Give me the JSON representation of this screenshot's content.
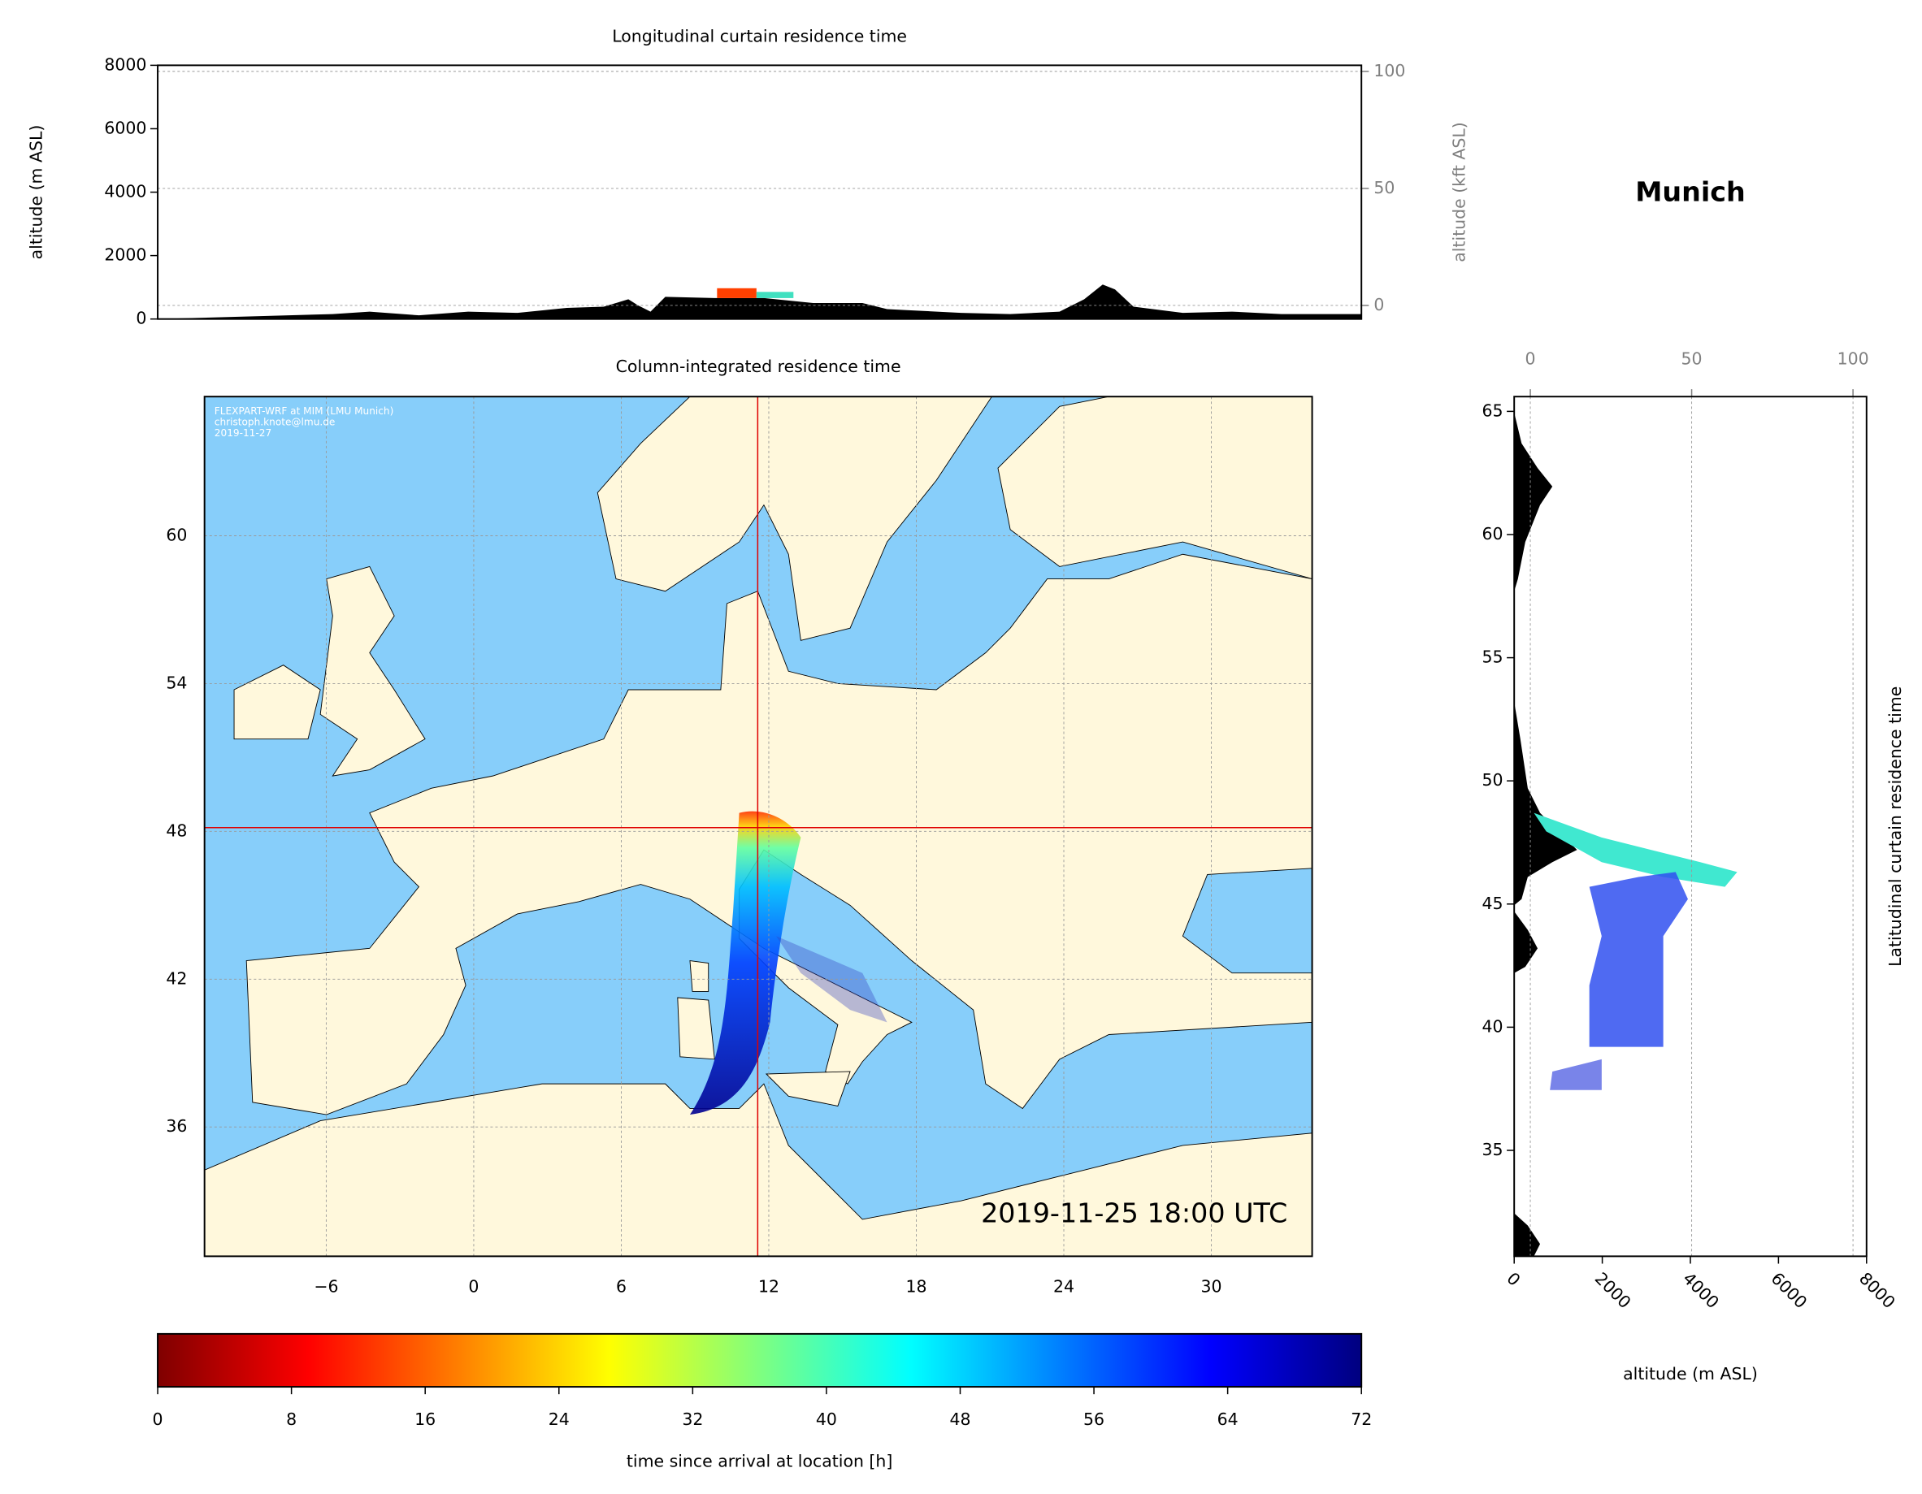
{
  "title": "Munich",
  "chart_data": [
    {
      "type": "area",
      "title": "Longitudinal curtain residence time",
      "y_label": "altitude (m ASL)",
      "y2_label": "altitude (kft ASL)",
      "ylim": [
        0,
        8000
      ],
      "yticks": [
        0,
        2000,
        4000,
        6000,
        8000
      ],
      "y2lim": [
        -5.8,
        102.6
      ],
      "y2ticks": [
        0,
        50,
        100
      ],
      "grid": true
    },
    {
      "type": "map",
      "title": "Column-integrated residence time",
      "annotation": [
        "FLEXPART-WRF at MIM (LMU Munich)",
        "christoph.knote@lmu.de",
        "2019-11-27"
      ],
      "timestamp": "2019-11-25 18:00 UTC",
      "xlim": [
        -10.95,
        34.1
      ],
      "xticks": [
        {
          "value": -6,
          "label": "−6"
        },
        0,
        6,
        12,
        18,
        24,
        30
      ],
      "ylim": [
        30.75,
        65.65
      ],
      "yticks": [
        36,
        42,
        48,
        54,
        60
      ],
      "location": [
        11.55,
        48.15
      ],
      "grid": true
    },
    {
      "type": "area",
      "y_label": "Latitudinal curtain residence time",
      "x_label": "altitude (m ASL)",
      "xlim": [
        0,
        8000
      ],
      "xticks": [
        0,
        2000,
        4000,
        6000,
        8000
      ],
      "x2lim": [
        -5,
        104.2
      ],
      "x2ticks": [
        0,
        50,
        100
      ],
      "ylim": [
        30.7,
        65.6
      ],
      "yticks": [
        35,
        40,
        45,
        50,
        55,
        60,
        65
      ],
      "grid": true
    },
    {
      "type": "colorbar",
      "label": "time since arrival at location [h]",
      "xlim": [
        0,
        72
      ],
      "xticks": [
        0,
        8,
        16,
        24,
        32,
        40,
        48,
        56,
        64,
        72
      ],
      "colors": [
        "#7f0000",
        "#ff0000",
        "#ff7f00",
        "#ffff00",
        "#7fff7f",
        "#00ffff",
        "#007fff",
        "#0000ff",
        "#00007f"
      ]
    }
  ]
}
